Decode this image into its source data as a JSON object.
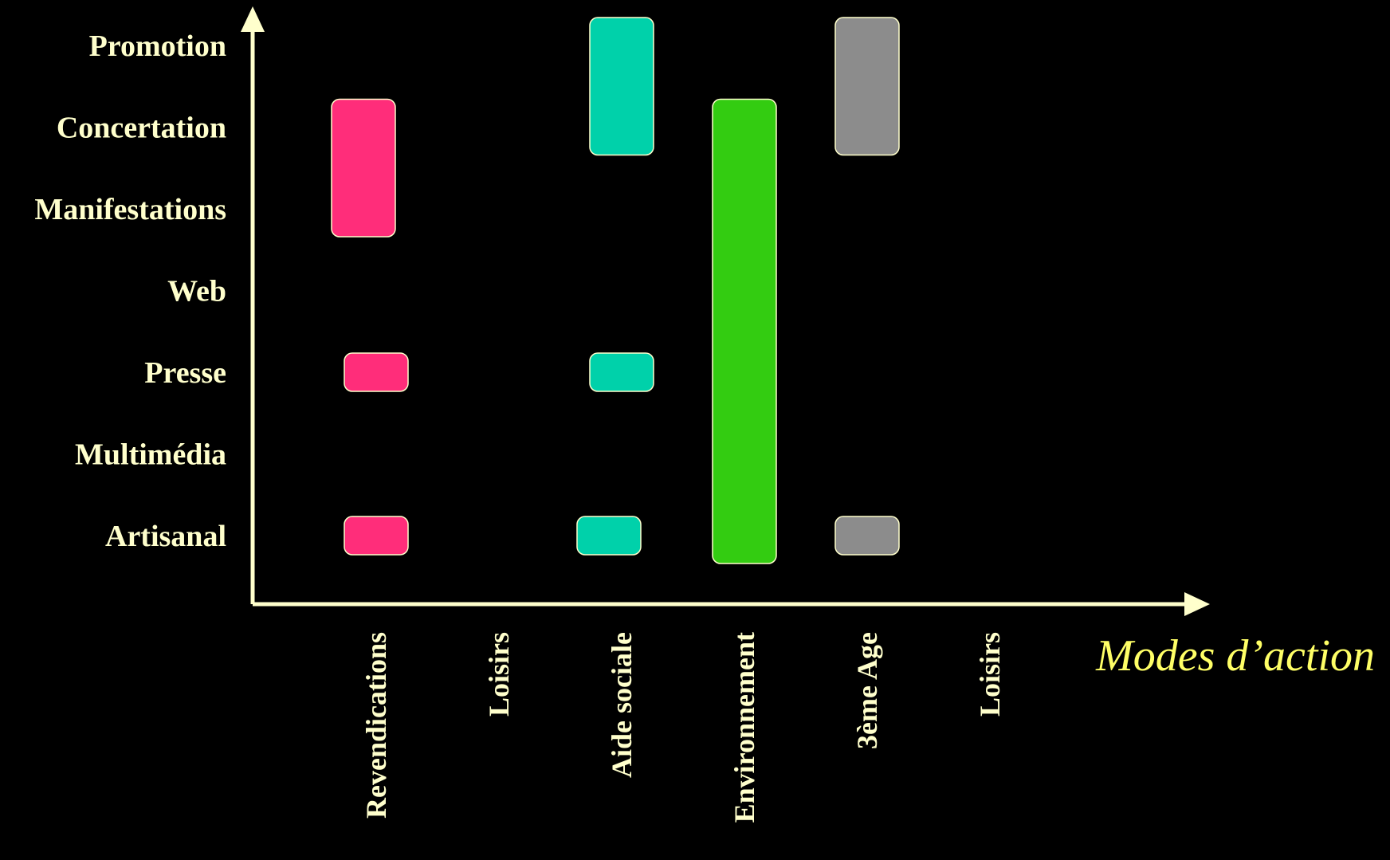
{
  "chart_data": {
    "type": "bar",
    "subtype": "range-bars",
    "background": "#000000",
    "axis_color": "#FFFFCC",
    "label_color": "#FFFFCC",
    "axis_title_color": "#FFFF66",
    "y_categories": [
      "Promotion",
      "Concertation",
      "Manifestations",
      "Web",
      "Presse",
      "Multimédia",
      "Artisanal"
    ],
    "x_categories": [
      "Revendications",
      "Loisirs",
      "Aide sociale",
      "Environnement",
      "3ème Age",
      "Loisirs"
    ],
    "xlabel": "Modes d’action",
    "ylabel": "",
    "grid": false,
    "ranges": [
      {
        "category": "Revendications",
        "from": "Manifestations",
        "to": "Concertation",
        "color": "#FF2D7A"
      },
      {
        "category": "Revendications",
        "from": "Presse",
        "to": "Presse",
        "color": "#FF2D7A"
      },
      {
        "category": "Revendications",
        "from": "Artisanal",
        "to": "Artisanal",
        "color": "#FF2D7A"
      },
      {
        "category": "Aide sociale",
        "from": "Concertation",
        "to": "Promotion",
        "color": "#00D1AA"
      },
      {
        "category": "Aide sociale",
        "from": "Presse",
        "to": "Presse",
        "color": "#00D1AA"
      },
      {
        "category": "Aide sociale",
        "from": "Artisanal",
        "to": "Artisanal",
        "color": "#00D1AA"
      },
      {
        "category": "Environnement",
        "from": "Artisanal",
        "to": "Concertation",
        "color": "#33CC11"
      },
      {
        "category": "3ème Age",
        "from": "Concertation",
        "to": "Promotion",
        "color": "#8C8C8C"
      },
      {
        "category": "3ème Age",
        "from": "Artisanal",
        "to": "Artisanal",
        "color": "#8C8C8C"
      }
    ]
  }
}
